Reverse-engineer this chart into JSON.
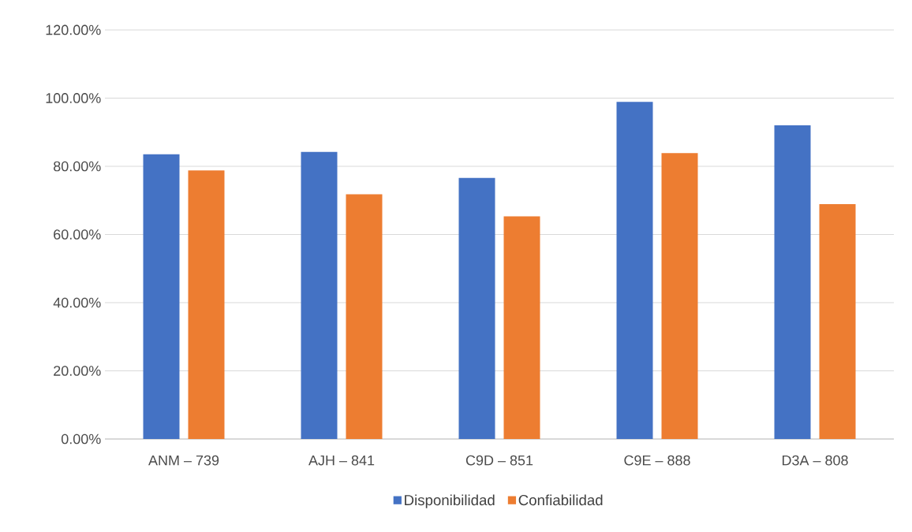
{
  "chart_data": {
    "type": "bar",
    "categories": [
      "ANM – 739",
      "AJH – 841",
      "C9D – 851",
      "C9E – 888",
      "D3A – 808"
    ],
    "series": [
      {
        "name": "Disponibilidad",
        "color": "#4472c4",
        "values": [
          83.5,
          84.2,
          76.6,
          98.9,
          92.0
        ]
      },
      {
        "name": "Confiabilidad",
        "color": "#ed7d31",
        "values": [
          78.8,
          71.8,
          65.3,
          83.9,
          68.9
        ]
      }
    ],
    "ylim": [
      0,
      120
    ],
    "yticks": [
      {
        "value": 0,
        "label": "0.00%"
      },
      {
        "value": 20,
        "label": "20.00%"
      },
      {
        "value": 40,
        "label": "40.00%"
      },
      {
        "value": 60,
        "label": "60.00%"
      },
      {
        "value": 80,
        "label": "80.00%"
      },
      {
        "value": 100,
        "label": "100.00%"
      },
      {
        "value": 120,
        "label": "120.00%"
      }
    ],
    "grid": "y",
    "legend": "bottom"
  }
}
